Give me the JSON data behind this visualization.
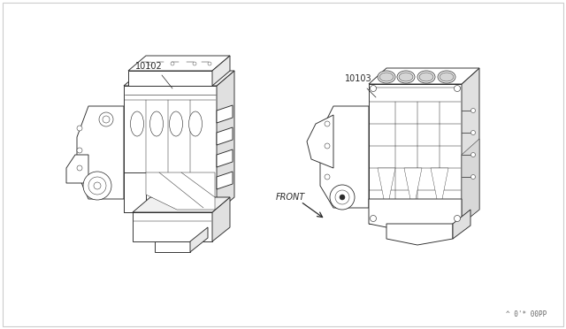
{
  "background_color": "#ffffff",
  "border_color": "#cccccc",
  "line_color": "#2a2a2a",
  "label_10102": "10102",
  "label_10103": "10103",
  "front_label": "FRONT",
  "watermark": "^ 0'* 00PP",
  "label_fontsize": 7,
  "watermark_fontsize": 5.5,
  "lw_main": 0.65,
  "lw_thin": 0.35
}
